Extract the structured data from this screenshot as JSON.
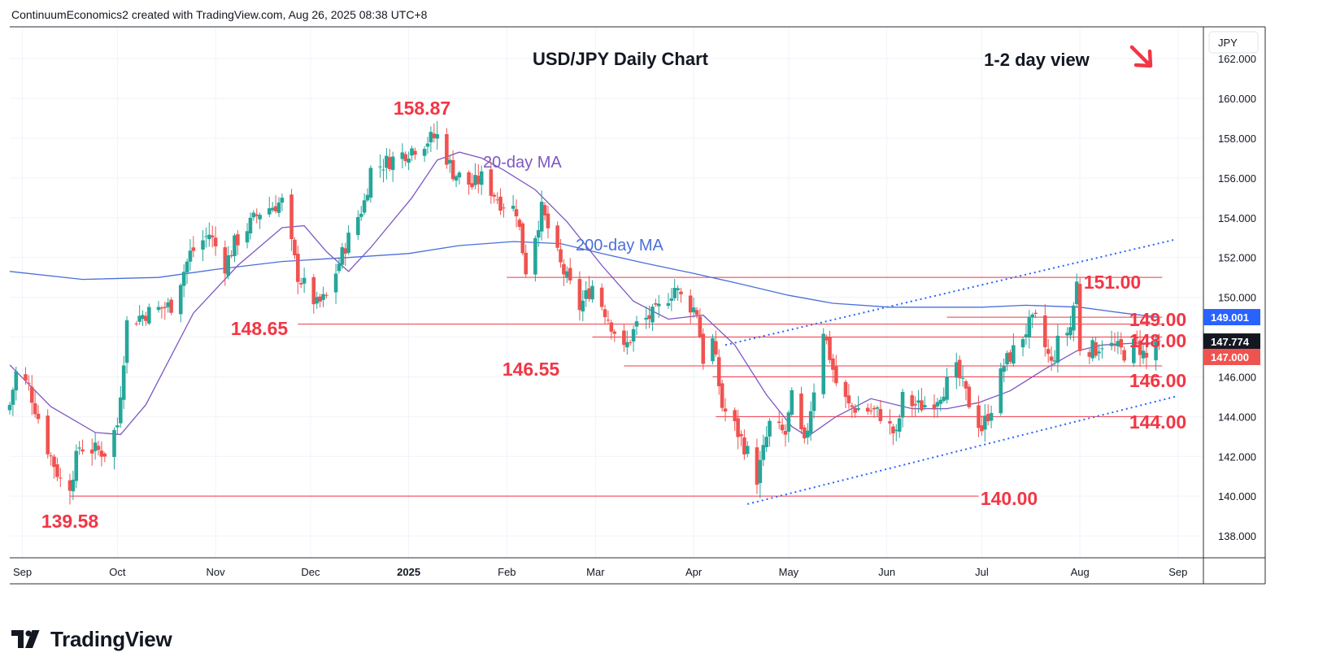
{
  "header": {
    "attribution": "ContinuumEconomics2 created with TradingView.com, Aug 26, 2025 08:38 UTC+8"
  },
  "brand": {
    "name": "TradingView"
  },
  "colors": {
    "up": "#26a69a",
    "down": "#ef5350",
    "ma20": "#7e57c2",
    "ma200": "#4a6fd9",
    "level": "#f23645",
    "channel": "#2962ff",
    "grid": "#f0f3fa",
    "axis_text": "#131722",
    "label_red": "#f23645",
    "tag_blue": "#2962ff",
    "tag_dark": "#131722"
  },
  "chart_data": {
    "type": "candlestick",
    "title": "USD/JPY Daily Chart",
    "view_label": "1-2 day view",
    "view_arrow": "down-right-arrow-icon",
    "currency": "JPY",
    "y_axis": {
      "range": [
        136.9,
        163.6
      ],
      "ticks": [
        "162.000",
        "160.000",
        "158.000",
        "156.000",
        "154.000",
        "152.000",
        "150.000",
        "149.001",
        "148.000",
        "147.774",
        "147.000",
        "146.000",
        "144.000",
        "142.000",
        "140.000",
        "138.000"
      ]
    },
    "x_axis": {
      "range": [
        "2024-08-28",
        "2025-09-09"
      ],
      "ticks": [
        {
          "label": "Sep",
          "date": "2024-09-01"
        },
        {
          "label": "Oct",
          "date": "2024-10-01"
        },
        {
          "label": "Nov",
          "date": "2024-11-01"
        },
        {
          "label": "Dec",
          "date": "2024-12-01"
        },
        {
          "label": "2025",
          "date": "2025-01-01",
          "bold": true
        },
        {
          "label": "Feb",
          "date": "2025-02-01"
        },
        {
          "label": "Mar",
          "date": "2025-03-01"
        },
        {
          "label": "Apr",
          "date": "2025-04-01"
        },
        {
          "label": "May",
          "date": "2025-05-01"
        },
        {
          "label": "Jun",
          "date": "2025-06-01"
        },
        {
          "label": "Jul",
          "date": "2025-07-01"
        },
        {
          "label": "Aug",
          "date": "2025-08-01"
        },
        {
          "label": "Sep",
          "date": "2025-09-01"
        }
      ]
    },
    "price_tags": [
      {
        "value": 149.001,
        "label": "149.001",
        "style": "blue"
      },
      {
        "value": 147.774,
        "label": "147.774",
        "style": "dark"
      },
      {
        "value": 147.0,
        "label": "147.000",
        "style": "red"
      }
    ],
    "annotations": [
      {
        "text": "158.87",
        "date": "2025-01-10",
        "value": 158.87,
        "kind": "high"
      },
      {
        "text": "139.58",
        "date": "2024-09-16",
        "value": 139.58,
        "kind": "low"
      },
      {
        "text": "148.65",
        "date": "2024-11-27",
        "value": 148.65,
        "kind": "level"
      },
      {
        "text": "146.55",
        "date": "2025-03-10",
        "value": 146.55,
        "kind": "level"
      },
      {
        "text": "151.00",
        "value": 151.0,
        "kind": "level"
      },
      {
        "text": "149.00",
        "value": 149.0,
        "kind": "level"
      },
      {
        "text": "148.00",
        "value": 148.0,
        "kind": "level"
      },
      {
        "text": "146.00",
        "value": 146.0,
        "kind": "level"
      },
      {
        "text": "144.00",
        "value": 144.0,
        "kind": "level"
      },
      {
        "text": "140.00",
        "value": 140.0,
        "kind": "level"
      }
    ],
    "ma_labels": [
      {
        "text": "20-day MA",
        "series": "ma20"
      },
      {
        "text": "200-day MA",
        "series": "ma200"
      }
    ],
    "horizontal_levels": [
      {
        "value": 151.0,
        "from": "2025-02-01",
        "to": "2025-08-27"
      },
      {
        "value": 149.0,
        "from": "2025-06-20",
        "to": "2025-08-27"
      },
      {
        "value": 148.65,
        "from": "2024-11-27",
        "to": "2025-08-27"
      },
      {
        "value": 148.0,
        "from": "2025-02-28",
        "to": "2025-08-27"
      },
      {
        "value": 146.55,
        "from": "2025-03-10",
        "to": "2025-08-27"
      },
      {
        "value": 146.0,
        "from": "2025-04-07",
        "to": "2025-08-27"
      },
      {
        "value": 144.0,
        "from": "2025-04-08",
        "to": "2025-08-27"
      },
      {
        "value": 140.0,
        "from": "2024-09-16",
        "to": "2025-06-30"
      }
    ],
    "channel_lines": [
      {
        "points": [
          {
            "date": "2025-04-11",
            "value": 147.6
          },
          {
            "date": "2025-08-31",
            "value": 152.9
          }
        ]
      },
      {
        "points": [
          {
            "date": "2025-04-18",
            "value": 139.6
          },
          {
            "date": "2025-08-31",
            "value": 145.0
          }
        ]
      }
    ],
    "anchors": [
      {
        "date": "2024-08-28",
        "close": 144.6
      },
      {
        "date": "2024-08-30",
        "close": 146.2
      },
      {
        "date": "2024-09-03",
        "close": 145.5
      },
      {
        "date": "2024-09-09",
        "close": 142.4
      },
      {
        "date": "2024-09-13",
        "close": 140.8
      },
      {
        "date": "2024-09-16",
        "close": 140.6
      },
      {
        "date": "2024-09-19",
        "close": 142.5
      },
      {
        "date": "2024-09-27",
        "close": 142.2
      },
      {
        "date": "2024-10-01",
        "close": 143.6
      },
      {
        "date": "2024-10-04",
        "close": 148.7
      },
      {
        "date": "2024-10-10",
        "close": 149.2
      },
      {
        "date": "2024-10-18",
        "close": 149.6
      },
      {
        "date": "2024-10-24",
        "close": 152.2
      },
      {
        "date": "2024-10-30",
        "close": 153.2
      },
      {
        "date": "2024-11-04",
        "close": 151.6
      },
      {
        "date": "2024-11-07",
        "close": 152.7
      },
      {
        "date": "2024-11-15",
        "close": 154.3
      },
      {
        "date": "2024-11-22",
        "close": 154.8
      },
      {
        "date": "2024-11-27",
        "close": 151.1
      },
      {
        "date": "2024-12-03",
        "close": 149.6
      },
      {
        "date": "2024-12-06",
        "close": 150.0
      },
      {
        "date": "2024-12-12",
        "close": 152.6
      },
      {
        "date": "2024-12-18",
        "close": 154.8
      },
      {
        "date": "2024-12-20",
        "close": 156.4
      },
      {
        "date": "2024-12-30",
        "close": 157.2
      },
      {
        "date": "2025-01-07",
        "close": 157.9
      },
      {
        "date": "2025-01-10",
        "close": 158.1
      },
      {
        "date": "2025-01-15",
        "close": 156.3
      },
      {
        "date": "2025-01-21",
        "close": 155.6
      },
      {
        "date": "2025-01-24",
        "close": 156.0
      },
      {
        "date": "2025-01-30",
        "close": 154.8
      },
      {
        "date": "2025-02-04",
        "close": 154.4
      },
      {
        "date": "2025-02-07",
        "close": 151.4
      },
      {
        "date": "2025-02-12",
        "close": 154.4
      },
      {
        "date": "2025-02-18",
        "close": 151.6
      },
      {
        "date": "2025-02-24",
        "close": 149.5
      },
      {
        "date": "2025-02-28",
        "close": 150.6
      },
      {
        "date": "2025-03-05",
        "close": 149.0
      },
      {
        "date": "2025-03-10",
        "close": 147.3
      },
      {
        "date": "2025-03-14",
        "close": 148.6
      },
      {
        "date": "2025-03-20",
        "close": 149.2
      },
      {
        "date": "2025-03-26",
        "close": 150.5
      },
      {
        "date": "2025-03-28",
        "close": 150.0
      },
      {
        "date": "2025-04-02",
        "close": 149.3
      },
      {
        "date": "2025-04-04",
        "close": 146.9
      },
      {
        "date": "2025-04-07",
        "close": 147.8
      },
      {
        "date": "2025-04-10",
        "close": 144.5
      },
      {
        "date": "2025-04-14",
        "close": 143.5
      },
      {
        "date": "2025-04-18",
        "close": 142.2
      },
      {
        "date": "2025-04-21",
        "close": 140.9
      },
      {
        "date": "2025-04-25",
        "close": 143.6
      },
      {
        "date": "2025-04-30",
        "close": 143.1
      },
      {
        "date": "2025-05-02",
        "close": 144.9
      },
      {
        "date": "2025-05-06",
        "close": 142.5
      },
      {
        "date": "2025-05-12",
        "close": 148.4
      },
      {
        "date": "2025-05-16",
        "close": 145.7
      },
      {
        "date": "2025-05-20",
        "close": 144.5
      },
      {
        "date": "2025-05-27",
        "close": 144.3
      },
      {
        "date": "2025-05-30",
        "close": 144.1
      },
      {
        "date": "2025-06-04",
        "close": 143.0
      },
      {
        "date": "2025-06-06",
        "close": 144.9
      },
      {
        "date": "2025-06-11",
        "close": 144.5
      },
      {
        "date": "2025-06-16",
        "close": 144.8
      },
      {
        "date": "2025-06-23",
        "close": 146.3
      },
      {
        "date": "2025-06-27",
        "close": 144.7
      },
      {
        "date": "2025-07-01",
        "close": 143.4
      },
      {
        "date": "2025-07-04",
        "close": 144.5
      },
      {
        "date": "2025-07-08",
        "close": 146.6
      },
      {
        "date": "2025-07-11",
        "close": 147.3
      },
      {
        "date": "2025-07-16",
        "close": 148.6
      },
      {
        "date": "2025-07-18",
        "close": 148.8
      },
      {
        "date": "2025-07-23",
        "close": 146.6
      },
      {
        "date": "2025-07-25",
        "close": 147.7
      },
      {
        "date": "2025-07-29",
        "close": 148.5
      },
      {
        "date": "2025-07-31",
        "close": 150.7
      },
      {
        "date": "2025-08-01",
        "close": 147.5
      },
      {
        "date": "2025-08-06",
        "close": 147.4
      },
      {
        "date": "2025-08-08",
        "close": 147.7
      },
      {
        "date": "2025-08-13",
        "close": 147.4
      },
      {
        "date": "2025-08-15",
        "close": 147.2
      },
      {
        "date": "2025-08-19",
        "close": 147.7
      },
      {
        "date": "2025-08-22",
        "close": 146.9
      },
      {
        "date": "2025-08-25",
        "close": 147.8
      },
      {
        "date": "2025-08-26",
        "close": 147.4
      }
    ],
    "extremes": [
      {
        "date": "2024-09-16",
        "low": 139.58
      },
      {
        "date": "2025-01-10",
        "high": 158.87
      },
      {
        "date": "2025-04-22",
        "low": 139.89
      },
      {
        "date": "2025-08-01",
        "high": 151.0
      }
    ],
    "ma20_points": [
      {
        "date": "2024-08-28",
        "value": 146.6
      },
      {
        "date": "2024-09-10",
        "value": 144.5
      },
      {
        "date": "2024-09-24",
        "value": 143.2
      },
      {
        "date": "2024-10-02",
        "value": 143.1
      },
      {
        "date": "2024-10-10",
        "value": 144.6
      },
      {
        "date": "2024-10-25",
        "value": 149.2
      },
      {
        "date": "2024-11-08",
        "value": 151.6
      },
      {
        "date": "2024-11-22",
        "value": 153.5
      },
      {
        "date": "2024-11-29",
        "value": 153.6
      },
      {
        "date": "2024-12-06",
        "value": 152.3
      },
      {
        "date": "2024-12-13",
        "value": 151.3
      },
      {
        "date": "2024-12-20",
        "value": 152.5
      },
      {
        "date": "2025-01-02",
        "value": 155.0
      },
      {
        "date": "2025-01-10",
        "value": 156.9
      },
      {
        "date": "2025-01-17",
        "value": 157.3
      },
      {
        "date": "2025-01-24",
        "value": 157.0
      },
      {
        "date": "2025-01-31",
        "value": 156.4
      },
      {
        "date": "2025-02-10",
        "value": 155.4
      },
      {
        "date": "2025-02-20",
        "value": 153.8
      },
      {
        "date": "2025-03-03",
        "value": 151.6
      },
      {
        "date": "2025-03-13",
        "value": 149.8
      },
      {
        "date": "2025-03-24",
        "value": 148.9
      },
      {
        "date": "2025-04-04",
        "value": 149.1
      },
      {
        "date": "2025-04-14",
        "value": 147.6
      },
      {
        "date": "2025-04-24",
        "value": 145.1
      },
      {
        "date": "2025-05-02",
        "value": 143.5
      },
      {
        "date": "2025-05-07",
        "value": 143.0
      },
      {
        "date": "2025-05-16",
        "value": 144.0
      },
      {
        "date": "2025-05-27",
        "value": 144.9
      },
      {
        "date": "2025-06-09",
        "value": 144.4
      },
      {
        "date": "2025-06-20",
        "value": 144.4
      },
      {
        "date": "2025-06-30",
        "value": 144.7
      },
      {
        "date": "2025-07-10",
        "value": 145.3
      },
      {
        "date": "2025-07-21",
        "value": 146.4
      },
      {
        "date": "2025-07-31",
        "value": 147.3
      },
      {
        "date": "2025-08-08",
        "value": 147.6
      },
      {
        "date": "2025-08-19",
        "value": 147.7
      },
      {
        "date": "2025-08-26",
        "value": 147.7
      }
    ],
    "ma200_points": [
      {
        "date": "2024-08-28",
        "value": 151.3
      },
      {
        "date": "2024-09-20",
        "value": 150.9
      },
      {
        "date": "2024-10-14",
        "value": 151.0
      },
      {
        "date": "2024-11-01",
        "value": 151.4
      },
      {
        "date": "2024-11-22",
        "value": 151.8
      },
      {
        "date": "2024-12-13",
        "value": 152.0
      },
      {
        "date": "2025-01-01",
        "value": 152.2
      },
      {
        "date": "2025-01-17",
        "value": 152.6
      },
      {
        "date": "2025-02-03",
        "value": 152.8
      },
      {
        "date": "2025-02-18",
        "value": 152.7
      },
      {
        "date": "2025-03-03",
        "value": 152.2
      },
      {
        "date": "2025-03-17",
        "value": 151.7
      },
      {
        "date": "2025-04-01",
        "value": 151.2
      },
      {
        "date": "2025-04-15",
        "value": 150.7
      },
      {
        "date": "2025-05-01",
        "value": 150.1
      },
      {
        "date": "2025-05-15",
        "value": 149.7
      },
      {
        "date": "2025-06-02",
        "value": 149.5
      },
      {
        "date": "2025-06-16",
        "value": 149.5
      },
      {
        "date": "2025-07-01",
        "value": 149.5
      },
      {
        "date": "2025-07-15",
        "value": 149.6
      },
      {
        "date": "2025-08-01",
        "value": 149.5
      },
      {
        "date": "2025-08-15",
        "value": 149.2
      },
      {
        "date": "2025-08-26",
        "value": 149.0
      }
    ]
  }
}
